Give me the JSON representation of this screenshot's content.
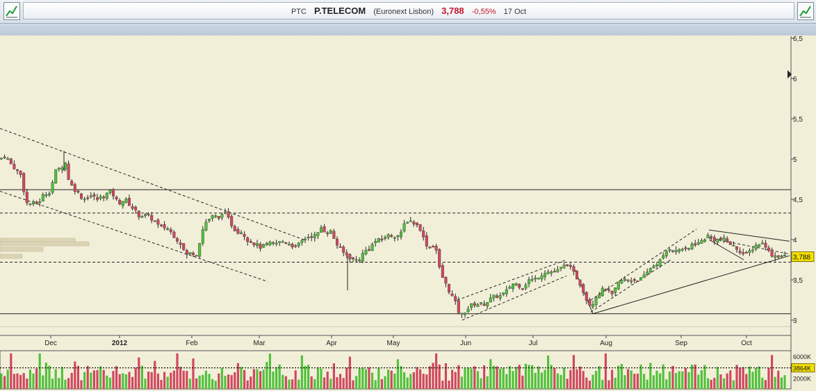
{
  "header": {
    "ticker": "PTC",
    "name": "P.TELECOM",
    "exchange": "(Euronext Lisbon)",
    "price": "3,788",
    "change": "-0,55%",
    "date": "17 Oct"
  },
  "colors": {
    "up": "#52c13d",
    "down": "#d0485f",
    "background": "#f2efd9",
    "price_label": "#f5e000"
  },
  "chart_data": {
    "type": "candlestick",
    "x_ticks": [
      "Dec",
      "2012",
      "Feb",
      "Mar",
      "Apr",
      "May",
      "Jun",
      "Jul",
      "Aug",
      "Sep",
      "Oct"
    ],
    "y_ticks": [
      "3",
      "3,5",
      "4",
      "4,5",
      "5",
      "5,5",
      "6",
      "6,5"
    ],
    "ylim": [
      2.9,
      6.6
    ],
    "price_label": "3,788",
    "price_value": 3.788,
    "horizontal_lines": [
      {
        "value": 4.62,
        "style": "solid"
      },
      {
        "value": 4.33,
        "style": "dashed"
      },
      {
        "value": 3.72,
        "style": "dashed"
      },
      {
        "value": 3.08,
        "style": "solid"
      }
    ],
    "close_path": [
      [
        0,
        5.0
      ],
      [
        8,
        5.05
      ],
      [
        14,
        4.95
      ],
      [
        20,
        4.9
      ],
      [
        30,
        4.8
      ],
      [
        38,
        4.45
      ],
      [
        45,
        4.45
      ],
      [
        55,
        4.45
      ],
      [
        62,
        4.55
      ],
      [
        72,
        4.6
      ],
      [
        80,
        4.85
      ],
      [
        88,
        4.9
      ],
      [
        94,
        4.95
      ],
      [
        100,
        4.7
      ],
      [
        110,
        4.6
      ],
      [
        120,
        4.5
      ],
      [
        130,
        4.55
      ],
      [
        140,
        4.5
      ],
      [
        150,
        4.55
      ],
      [
        160,
        4.6
      ],
      [
        170,
        4.45
      ],
      [
        180,
        4.5
      ],
      [
        190,
        4.4
      ],
      [
        200,
        4.3
      ],
      [
        210,
        4.3
      ],
      [
        220,
        4.25
      ],
      [
        230,
        4.15
      ],
      [
        240,
        4.15
      ],
      [
        250,
        4.05
      ],
      [
        260,
        3.95
      ],
      [
        268,
        3.8
      ],
      [
        276,
        3.85
      ],
      [
        282,
        3.8
      ],
      [
        288,
        4.0
      ],
      [
        294,
        4.2
      ],
      [
        300,
        4.25
      ],
      [
        308,
        4.3
      ],
      [
        315,
        4.25
      ],
      [
        320,
        4.35
      ],
      [
        326,
        4.3
      ],
      [
        332,
        4.2
      ],
      [
        340,
        4.1
      ],
      [
        348,
        4.1
      ],
      [
        356,
        4.0
      ],
      [
        366,
        3.95
      ],
      [
        376,
        3.9
      ],
      [
        386,
        3.95
      ],
      [
        396,
        3.95
      ],
      [
        406,
        3.98
      ],
      [
        416,
        3.95
      ],
      [
        426,
        3.9
      ],
      [
        436,
        4.0
      ],
      [
        446,
        4.05
      ],
      [
        456,
        4.05
      ],
      [
        462,
        4.15
      ],
      [
        468,
        4.1
      ],
      [
        476,
        4.1
      ],
      [
        484,
        3.95
      ],
      [
        492,
        3.85
      ],
      [
        500,
        3.8
      ],
      [
        508,
        3.75
      ],
      [
        516,
        3.75
      ],
      [
        524,
        3.85
      ],
      [
        532,
        3.9
      ],
      [
        540,
        3.98
      ],
      [
        548,
        4.0
      ],
      [
        556,
        4.05
      ],
      [
        564,
        4.05
      ],
      [
        570,
        4.05
      ],
      [
        576,
        4.05
      ],
      [
        582,
        4.2
      ],
      [
        588,
        4.25
      ],
      [
        596,
        4.2
      ],
      [
        604,
        4.15
      ],
      [
        612,
        3.95
      ],
      [
        620,
        3.9
      ],
      [
        626,
        3.95
      ],
      [
        632,
        3.65
      ],
      [
        638,
        3.5
      ],
      [
        644,
        3.4
      ],
      [
        650,
        3.3
      ],
      [
        656,
        3.2
      ],
      [
        662,
        3.05
      ],
      [
        668,
        3.1
      ],
      [
        674,
        3.15
      ],
      [
        680,
        3.2
      ],
      [
        688,
        3.2
      ],
      [
        696,
        3.2
      ],
      [
        704,
        3.25
      ],
      [
        712,
        3.3
      ],
      [
        720,
        3.3
      ],
      [
        728,
        3.35
      ],
      [
        736,
        3.45
      ],
      [
        744,
        3.45
      ],
      [
        752,
        3.4
      ],
      [
        760,
        3.5
      ],
      [
        768,
        3.5
      ],
      [
        776,
        3.55
      ],
      [
        784,
        3.6
      ],
      [
        792,
        3.6
      ],
      [
        800,
        3.6
      ],
      [
        808,
        3.65
      ],
      [
        816,
        3.7
      ],
      [
        824,
        3.6
      ],
      [
        832,
        3.5
      ],
      [
        840,
        3.35
      ],
      [
        846,
        3.2
      ],
      [
        852,
        3.2
      ],
      [
        858,
        3.3
      ],
      [
        864,
        3.35
      ],
      [
        870,
        3.4
      ],
      [
        876,
        3.35
      ],
      [
        882,
        3.3
      ],
      [
        888,
        3.45
      ],
      [
        896,
        3.5
      ],
      [
        904,
        3.5
      ],
      [
        912,
        3.5
      ],
      [
        920,
        3.5
      ],
      [
        928,
        3.55
      ],
      [
        936,
        3.65
      ],
      [
        944,
        3.7
      ],
      [
        952,
        3.75
      ],
      [
        958,
        3.85
      ],
      [
        964,
        3.9
      ],
      [
        972,
        3.85
      ],
      [
        980,
        3.9
      ],
      [
        988,
        3.85
      ],
      [
        996,
        3.95
      ],
      [
        1004,
        3.95
      ],
      [
        1012,
        4.0
      ],
      [
        1018,
        4.05
      ],
      [
        1026,
        4.0
      ],
      [
        1034,
        4.0
      ],
      [
        1042,
        4.0
      ],
      [
        1050,
        3.95
      ],
      [
        1058,
        3.9
      ],
      [
        1066,
        3.85
      ],
      [
        1072,
        3.8
      ],
      [
        1078,
        3.85
      ],
      [
        1084,
        3.9
      ],
      [
        1090,
        3.95
      ],
      [
        1096,
        3.95
      ],
      [
        1100,
        3.95
      ],
      [
        1106,
        3.85
      ],
      [
        1112,
        3.8
      ],
      [
        1118,
        3.8
      ],
      [
        1124,
        3.8
      ],
      [
        1130,
        3.79
      ]
    ],
    "volume_ticks": [
      "6000K",
      "3864K",
      "2000K"
    ],
    "volume_label": "3864K",
    "volume_value": 3864,
    "volume_ylim": [
      0,
      7000
    ],
    "volume_range": [
      1000,
      6500
    ]
  }
}
